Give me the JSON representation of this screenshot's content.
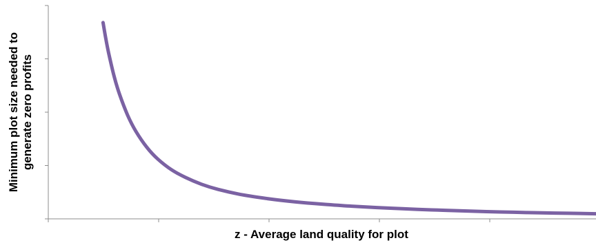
{
  "chart_data": {
    "type": "line",
    "title": "",
    "xlabel": "z - Average land quality for plot",
    "ylabel_lines": [
      "Minimum plot size needed to",
      "generate zero profits"
    ],
    "xlim": [
      0,
      10
    ],
    "ylim": [
      0,
      10
    ],
    "x_ticks_shown": 4,
    "y_ticks_shown": 4,
    "tick_labels_shown": false,
    "grid": false,
    "legend": "none",
    "series": [
      {
        "color": "#7b62a3",
        "x": [
          1.0,
          1.05,
          1.1,
          1.2,
          1.3,
          1.45,
          1.6,
          1.8,
          2.0,
          2.25,
          2.5,
          2.8,
          3.1,
          3.5,
          4.0,
          4.5,
          5.0,
          5.5,
          6.0,
          6.5,
          7.0,
          7.5,
          8.0,
          8.5,
          9.0,
          9.5,
          10.0
        ],
        "y": [
          9.2,
          8.45,
          7.8,
          6.7,
          5.85,
          4.85,
          4.1,
          3.35,
          2.8,
          2.3,
          1.95,
          1.62,
          1.38,
          1.15,
          0.95,
          0.8,
          0.69,
          0.6,
          0.53,
          0.47,
          0.42,
          0.38,
          0.34,
          0.31,
          0.28,
          0.26,
          0.24
        ]
      }
    ]
  }
}
